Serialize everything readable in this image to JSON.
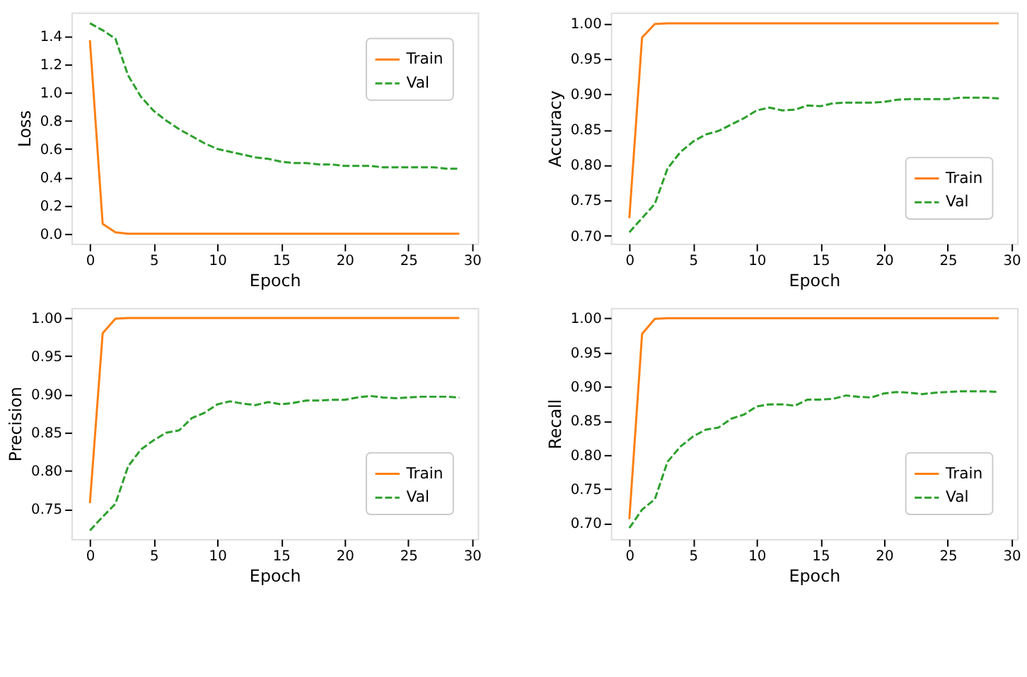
{
  "chart_data": [
    {
      "type": "line",
      "xlabel": "Epoch",
      "ylabel": "Loss",
      "legend": "top right",
      "grid": false,
      "x": [
        0,
        1,
        2,
        3,
        4,
        5,
        6,
        7,
        8,
        9,
        10,
        11,
        12,
        13,
        14,
        15,
        16,
        17,
        18,
        19,
        20,
        21,
        22,
        23,
        24,
        25,
        26,
        27,
        28,
        29
      ],
      "xlim": [
        -1.45,
        30.45
      ],
      "xticks": [
        0,
        5,
        10,
        15,
        20,
        25,
        30
      ],
      "ylim": [
        -0.07,
        1.565
      ],
      "yticks": [
        {
          "value": 0,
          "label": "0.0"
        },
        0.2,
        0.4,
        0.6,
        0.8,
        {
          "value": 1,
          "label": "1.0"
        },
        1.2,
        1.4
      ],
      "series": [
        {
          "name": "Train",
          "color": "#ff7f0e",
          "line_style": "solid",
          "values": [
            1.37,
            0.07,
            0.01,
            0,
            0,
            0,
            0,
            0,
            0,
            0,
            0,
            0,
            0,
            0,
            0,
            0,
            0,
            0,
            0,
            0,
            0,
            0,
            0,
            0,
            0,
            0,
            0,
            0,
            0,
            0
          ]
        },
        {
          "name": "Val",
          "color": "#2ca02c",
          "line_style": "dashed",
          "values": [
            1.49,
            1.44,
            1.38,
            1.12,
            0.97,
            0.87,
            0.8,
            0.74,
            0.69,
            0.64,
            0.6,
            0.58,
            0.56,
            0.54,
            0.53,
            0.51,
            0.5,
            0.5,
            0.49,
            0.49,
            0.48,
            0.48,
            0.48,
            0.47,
            0.47,
            0.47,
            0.47,
            0.47,
            0.46,
            0.46
          ]
        }
      ]
    },
    {
      "type": "line",
      "xlabel": "Epoch",
      "ylabel": "Accuracy",
      "legend": "bottom right",
      "grid": false,
      "x": [
        0,
        1,
        2,
        3,
        4,
        5,
        6,
        7,
        8,
        9,
        10,
        11,
        12,
        13,
        14,
        15,
        16,
        17,
        18,
        19,
        20,
        21,
        22,
        23,
        24,
        25,
        26,
        27,
        28,
        29
      ],
      "xlim": [
        -1.45,
        30.45
      ],
      "xticks": [
        0,
        5,
        10,
        15,
        20,
        25,
        30
      ],
      "ylim": [
        0.689,
        1.015
      ],
      "yticks": [
        {
          "value": 0.7,
          "label": "0.70"
        },
        {
          "value": 0.75,
          "label": "0.75"
        },
        {
          "value": 0.8,
          "label": "0.80"
        },
        {
          "value": 0.85,
          "label": "0.85"
        },
        {
          "value": 0.9,
          "label": "0.90"
        },
        {
          "value": 0.95,
          "label": "0.95"
        },
        {
          "value": 1,
          "label": "1.00"
        }
      ],
      "series": [
        {
          "name": "Train",
          "color": "#ff7f0e",
          "line_style": "solid",
          "values": [
            0.725,
            0.98,
            0.999,
            1,
            1,
            1,
            1,
            1,
            1,
            1,
            1,
            1,
            1,
            1,
            1,
            1,
            1,
            1,
            1,
            1,
            1,
            1,
            1,
            1,
            1,
            1,
            1,
            1,
            1,
            1
          ]
        },
        {
          "name": "Val",
          "color": "#2ca02c",
          "line_style": "dashed",
          "values": [
            0.705,
            0.725,
            0.745,
            0.795,
            0.818,
            0.833,
            0.843,
            0.848,
            0.857,
            0.866,
            0.877,
            0.881,
            0.877,
            0.878,
            0.884,
            0.883,
            0.887,
            0.888,
            0.888,
            0.888,
            0.889,
            0.892,
            0.893,
            0.893,
            0.893,
            0.893,
            0.895,
            0.895,
            0.895,
            0.894
          ]
        }
      ]
    },
    {
      "type": "line",
      "xlabel": "Epoch",
      "ylabel": "Precision",
      "legend": "bottom right",
      "grid": false,
      "x": [
        0,
        1,
        2,
        3,
        4,
        5,
        6,
        7,
        8,
        9,
        10,
        11,
        12,
        13,
        14,
        15,
        16,
        17,
        18,
        19,
        20,
        21,
        22,
        23,
        24,
        25,
        26,
        27,
        28,
        29
      ],
      "xlim": [
        -1.45,
        30.45
      ],
      "xticks": [
        0,
        5,
        10,
        15,
        20,
        25,
        30
      ],
      "ylim": [
        0.711,
        1.013
      ],
      "yticks": [
        {
          "value": 0.75,
          "label": "0.75"
        },
        {
          "value": 0.8,
          "label": "0.80"
        },
        {
          "value": 0.85,
          "label": "0.85"
        },
        {
          "value": 0.9,
          "label": "0.90"
        },
        {
          "value": 0.95,
          "label": "0.95"
        },
        {
          "value": 1,
          "label": "1.00"
        }
      ],
      "series": [
        {
          "name": "Train",
          "color": "#ff7f0e",
          "line_style": "solid",
          "values": [
            0.758,
            0.98,
            0.999,
            1,
            1,
            1,
            1,
            1,
            1,
            1,
            1,
            1,
            1,
            1,
            1,
            1,
            1,
            1,
            1,
            1,
            1,
            1,
            1,
            1,
            1,
            1,
            1,
            1,
            1,
            1
          ]
        },
        {
          "name": "Val",
          "color": "#2ca02c",
          "line_style": "dashed",
          "values": [
            0.722,
            0.74,
            0.757,
            0.806,
            0.828,
            0.84,
            0.85,
            0.853,
            0.869,
            0.876,
            0.887,
            0.891,
            0.888,
            0.886,
            0.89,
            0.887,
            0.889,
            0.892,
            0.892,
            0.893,
            0.893,
            0.896,
            0.898,
            0.896,
            0.895,
            0.896,
            0.897,
            0.897,
            0.897,
            0.896
          ]
        }
      ]
    },
    {
      "type": "line",
      "xlabel": "Epoch",
      "ylabel": "Recall",
      "legend": "bottom right",
      "grid": false,
      "x": [
        0,
        1,
        2,
        3,
        4,
        5,
        6,
        7,
        8,
        9,
        10,
        11,
        12,
        13,
        14,
        15,
        16,
        17,
        18,
        19,
        20,
        21,
        22,
        23,
        24,
        25,
        26,
        27,
        28,
        29
      ],
      "xlim": [
        -1.45,
        30.45
      ],
      "xticks": [
        0,
        5,
        10,
        15,
        20,
        25,
        30
      ],
      "ylim": [
        0.677,
        1.015
      ],
      "yticks": [
        {
          "value": 0.7,
          "label": "0.70"
        },
        {
          "value": 0.75,
          "label": "0.75"
        },
        {
          "value": 0.8,
          "label": "0.80"
        },
        {
          "value": 0.85,
          "label": "0.85"
        },
        {
          "value": 0.9,
          "label": "0.90"
        },
        {
          "value": 0.95,
          "label": "0.95"
        },
        {
          "value": 1,
          "label": "1.00"
        }
      ],
      "series": [
        {
          "name": "Train",
          "color": "#ff7f0e",
          "line_style": "solid",
          "values": [
            0.706,
            0.977,
            0.999,
            1,
            1,
            1,
            1,
            1,
            1,
            1,
            1,
            1,
            1,
            1,
            1,
            1,
            1,
            1,
            1,
            1,
            1,
            1,
            1,
            1,
            1,
            1,
            1,
            1,
            1,
            1
          ]
        },
        {
          "name": "Val",
          "color": "#2ca02c",
          "line_style": "dashed",
          "values": [
            0.693,
            0.72,
            0.735,
            0.79,
            0.812,
            0.827,
            0.837,
            0.84,
            0.853,
            0.859,
            0.871,
            0.874,
            0.874,
            0.872,
            0.881,
            0.881,
            0.882,
            0.887,
            0.885,
            0.884,
            0.89,
            0.892,
            0.891,
            0.889,
            0.891,
            0.892,
            0.893,
            0.893,
            0.893,
            0.892
          ]
        }
      ]
    }
  ]
}
